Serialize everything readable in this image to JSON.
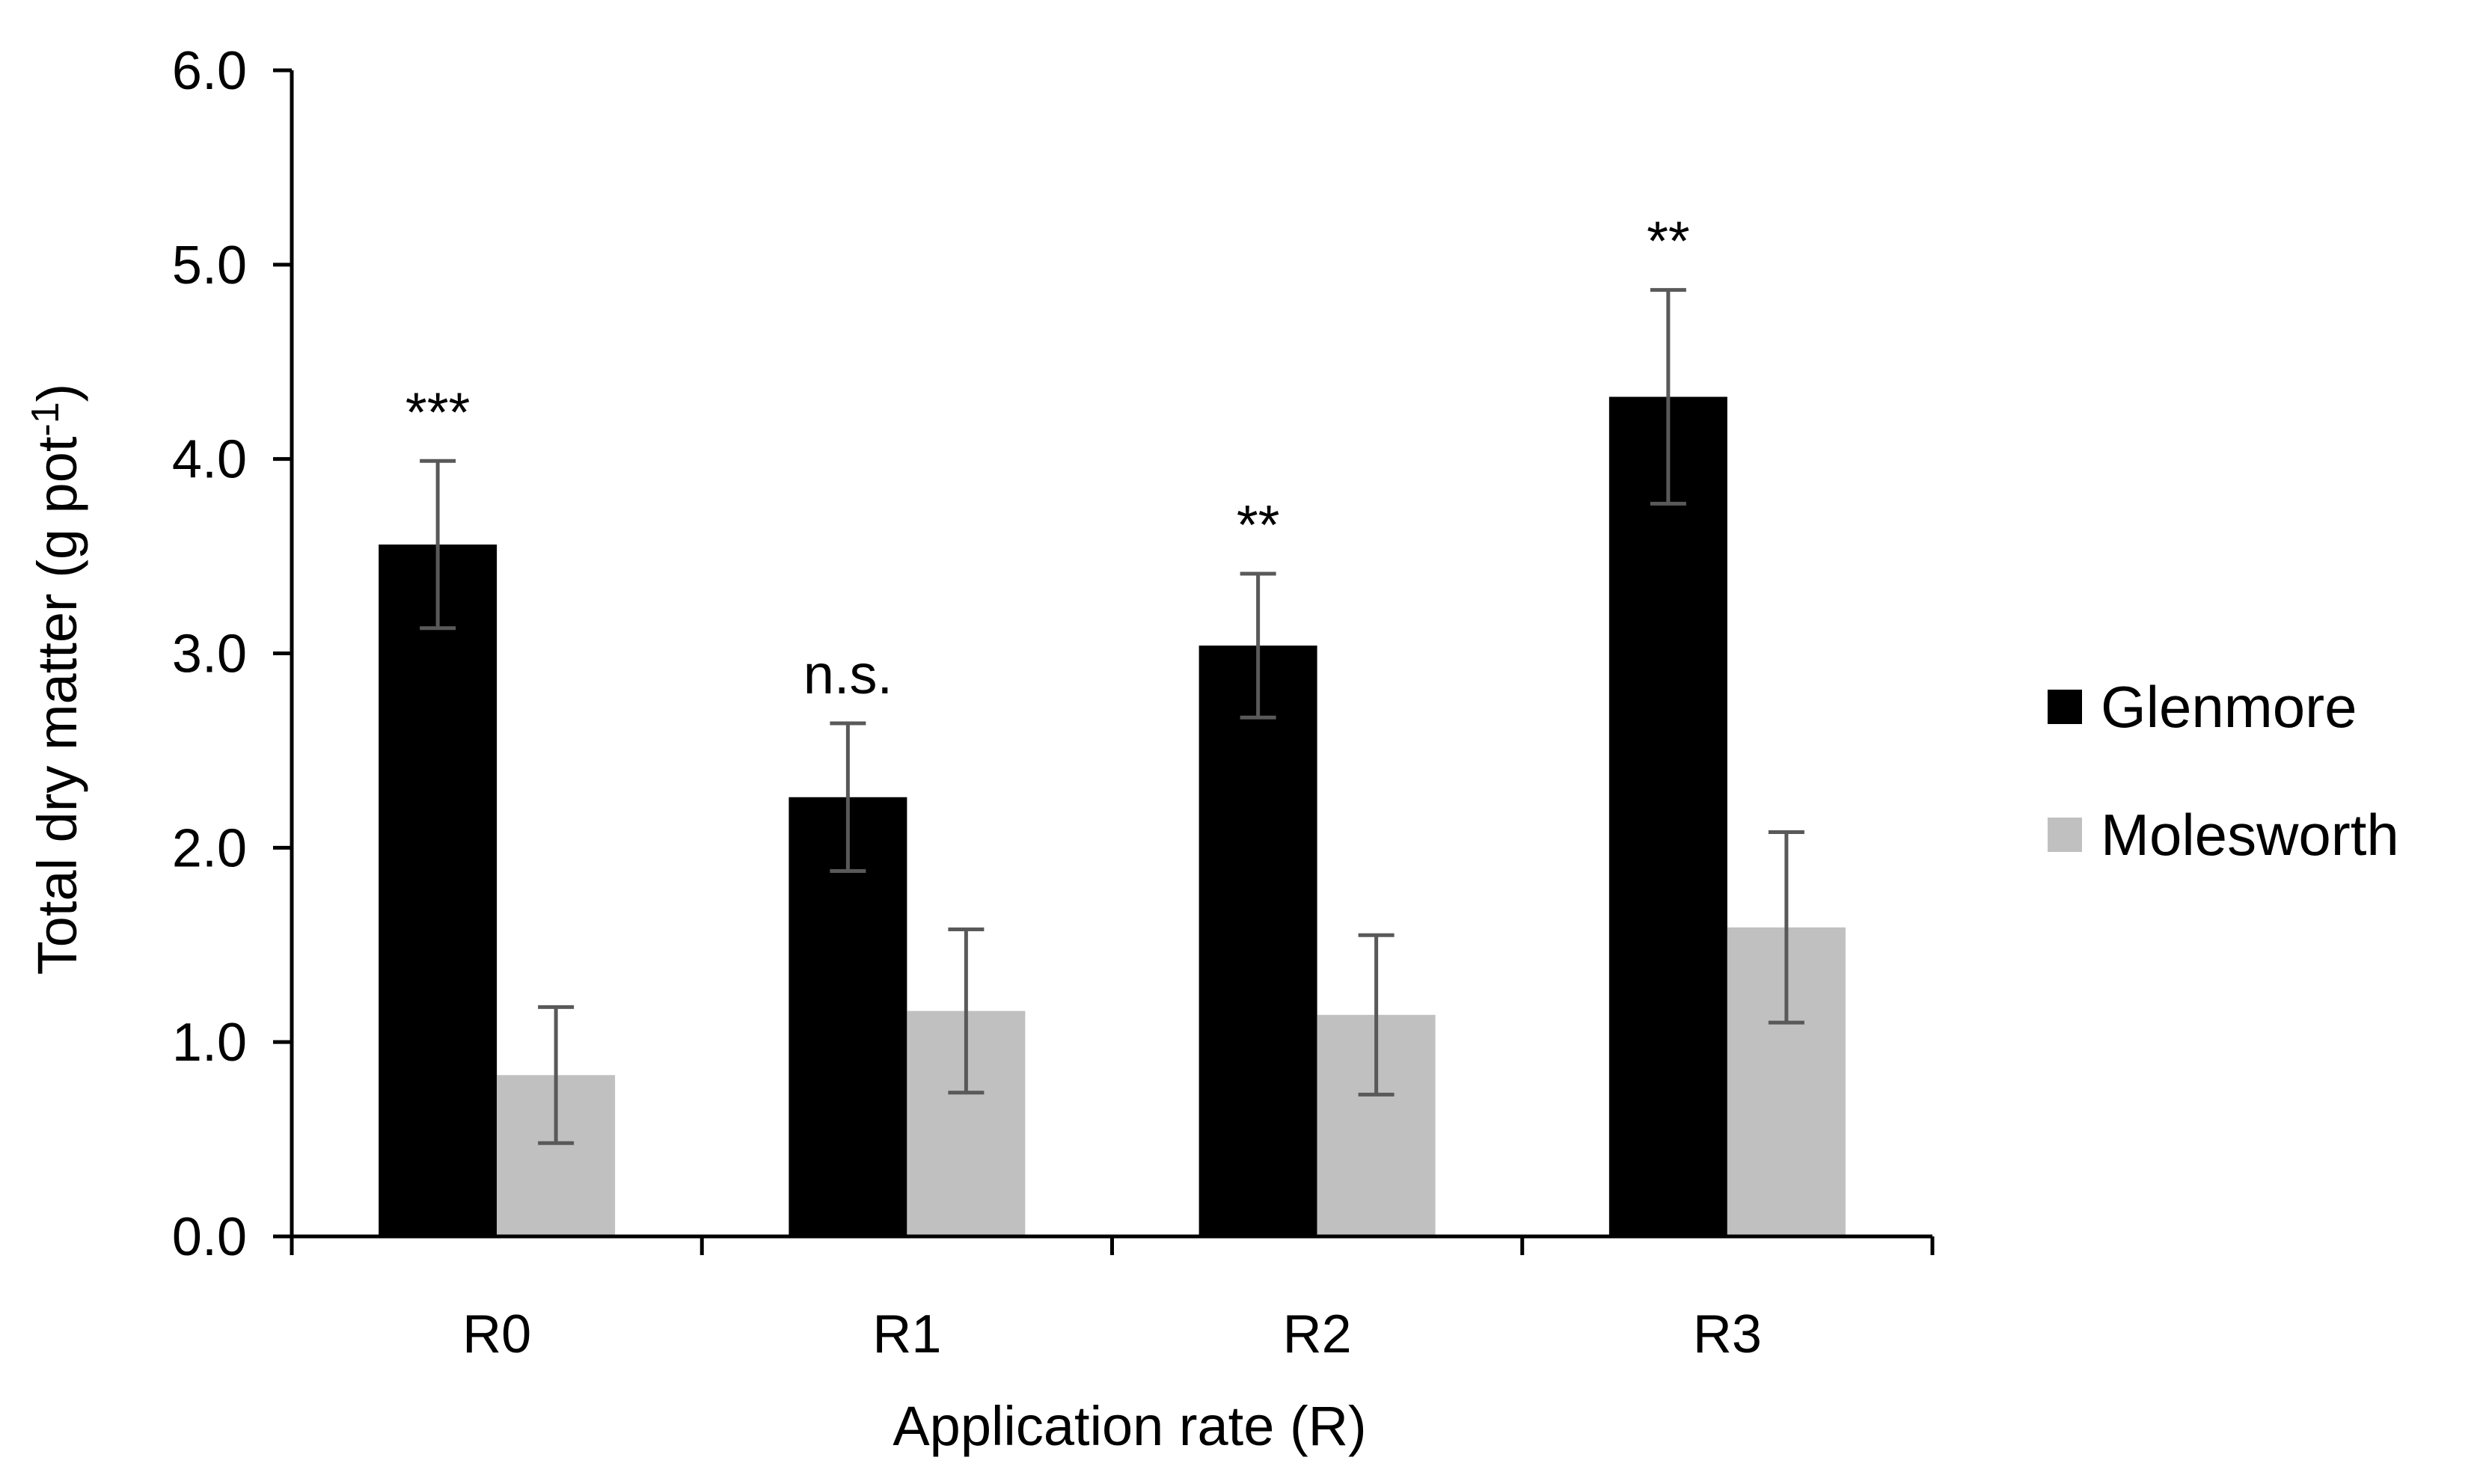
{
  "chart_data": {
    "type": "bar",
    "title": "",
    "xlabel": "Application rate (R)",
    "ylabel": {
      "main": "Total dry matter (g pot",
      "superscript": "-1",
      "close": ")"
    },
    "ylim": [
      0,
      6
    ],
    "yticks": [
      "0.0",
      "1.0",
      "2.0",
      "3.0",
      "4.0",
      "5.0",
      "6.0"
    ],
    "ytick_values": [
      0,
      1,
      2,
      3,
      4,
      5,
      6
    ],
    "categories": [
      "R0",
      "R1",
      "R2",
      "R3"
    ],
    "series": [
      {
        "name": "Glenmore",
        "color": "#000000",
        "values": [
          3.56,
          2.26,
          3.04,
          4.32
        ],
        "errors": [
          0.43,
          0.38,
          0.37,
          0.55
        ]
      },
      {
        "name": "Molesworth",
        "color": "#c0c0c0",
        "values": [
          0.83,
          1.16,
          1.14,
          1.59
        ],
        "errors": [
          0.35,
          0.42,
          0.41,
          0.49
        ]
      }
    ],
    "significance": [
      "***",
      "n.s.",
      "**",
      "**"
    ],
    "legend_position": "right",
    "grid": false,
    "error_bar_color": "#595959"
  }
}
